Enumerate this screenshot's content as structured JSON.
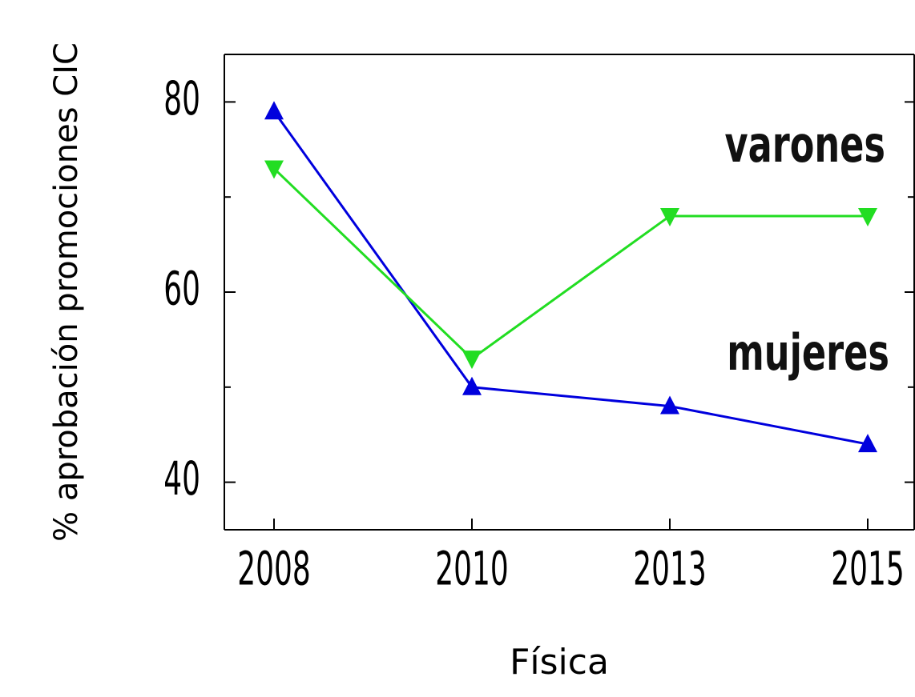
{
  "chart_data": {
    "type": "line",
    "xlabel": "Física",
    "ylabel": "% aprobación promociones CIC",
    "categories": [
      "2008",
      "2010",
      "2013",
      "2015"
    ],
    "series": [
      {
        "name": "mujeres",
        "color": "#0000dd",
        "marker": "triangle-up",
        "values": [
          79,
          50,
          48,
          44
        ]
      },
      {
        "name": "varones",
        "color": "#22dd22",
        "marker": "triangle-down",
        "values": [
          73,
          53,
          68,
          68
        ]
      }
    ],
    "ylim": [
      35,
      85
    ],
    "yticks": [
      40,
      60,
      80
    ],
    "minor_yticks": [
      50,
      70
    ]
  }
}
